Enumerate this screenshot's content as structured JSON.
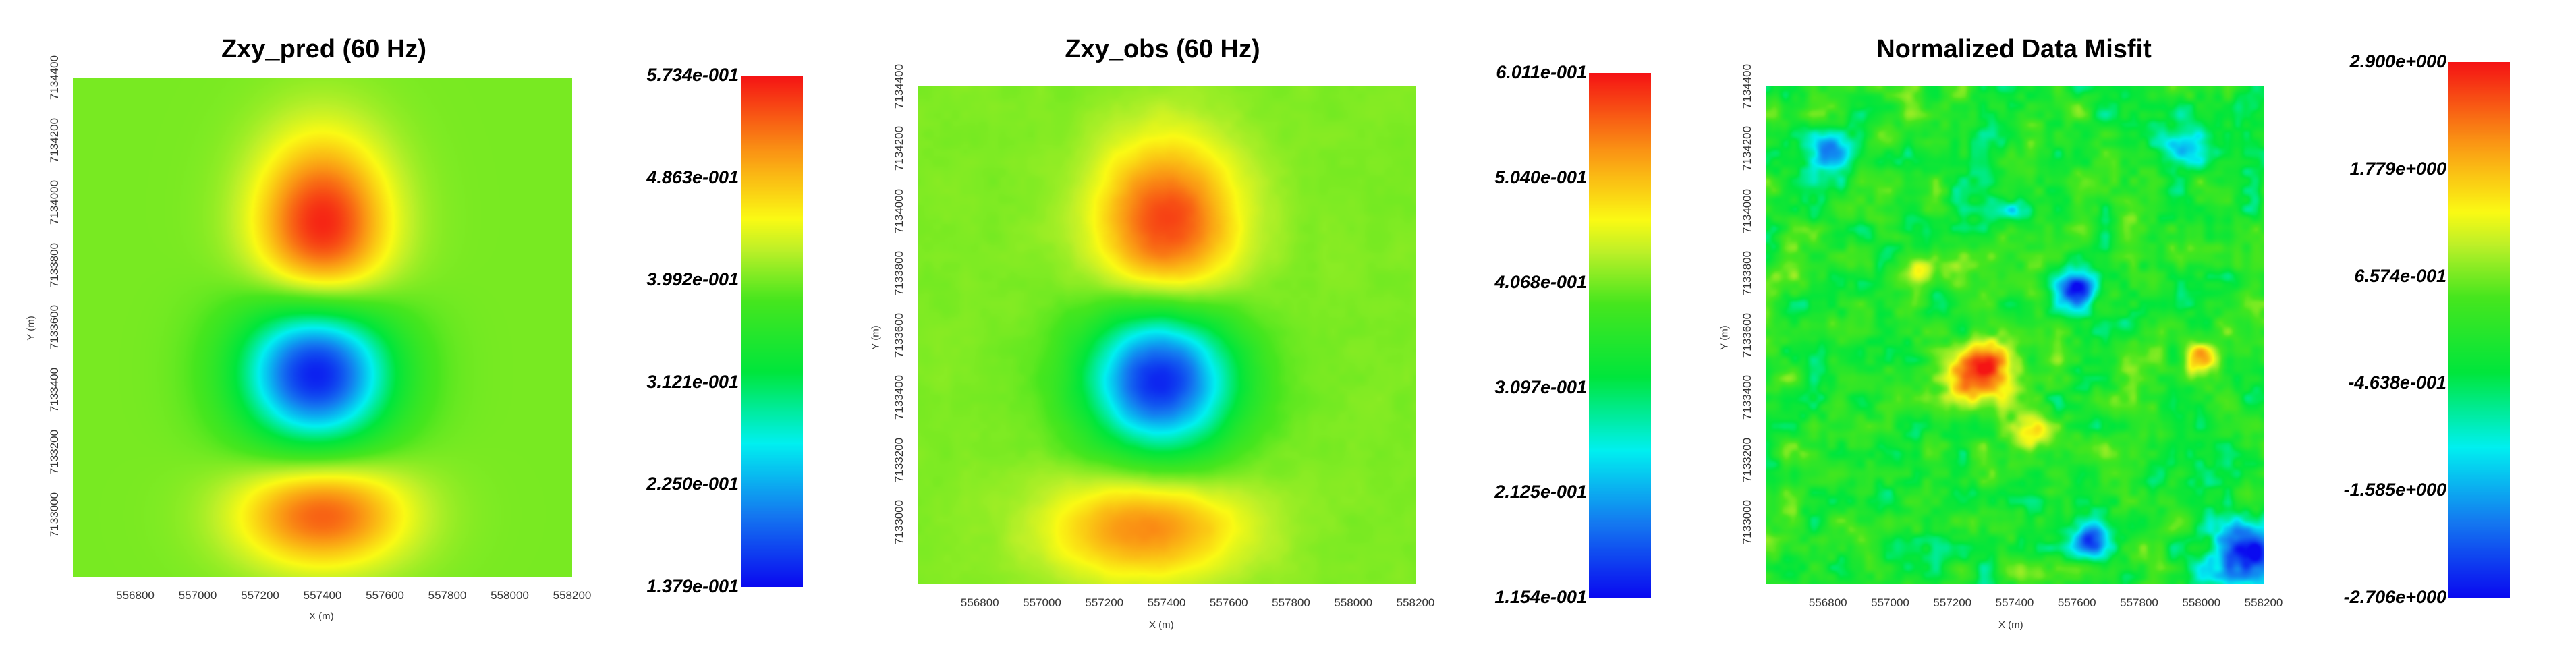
{
  "chart_data": [
    {
      "type": "heatmap",
      "title": "Zxy_pred (60 Hz)",
      "xlabel": "X (m)",
      "ylabel": "Y (m)",
      "xlim": [
        556600,
        558200
      ],
      "ylim": [
        7132800,
        7134400
      ],
      "x_ticks": [
        "556800",
        "557000",
        "557200",
        "557400",
        "557600",
        "557800",
        "558000",
        "558200"
      ],
      "y_ticks": [
        "7133000",
        "7133200",
        "7133400",
        "7133600",
        "7133800",
        "7134000",
        "7134200",
        "7134400"
      ],
      "colorbar": {
        "min": 0.1379,
        "max": 0.5734,
        "ticks": [
          "5.734e-001",
          "4.863e-001",
          "3.992e-001",
          "3.121e-001",
          "2.250e-001",
          "1.379e-001"
        ]
      },
      "features": [
        {
          "x": 557400,
          "y": 7133920,
          "value": 0.57,
          "sx": 150,
          "sy": 200
        },
        {
          "x": 557380,
          "y": 7133460,
          "value": 0.14,
          "sx": 170,
          "sy": 170
        },
        {
          "x": 557400,
          "y": 7133000,
          "value": 0.54,
          "sx": 190,
          "sy": 120
        }
      ],
      "background": 0.4,
      "noise": 0.0
    },
    {
      "type": "heatmap",
      "title": "Zxy_obs (60 Hz)",
      "xlabel": "X (m)",
      "ylabel": "Y (m)",
      "xlim": [
        556600,
        558200
      ],
      "ylim": [
        7132800,
        7134400
      ],
      "x_ticks": [
        "556800",
        "557000",
        "557200",
        "557400",
        "557600",
        "557800",
        "558000",
        "558200"
      ],
      "y_ticks": [
        "7133000",
        "7133200",
        "7133400",
        "7133600",
        "7133800",
        "7134000",
        "7134200",
        "7134400"
      ],
      "colorbar": {
        "min": 0.1154,
        "max": 0.6011,
        "ticks": [
          "6.011e-001",
          "5.040e-001",
          "4.068e-001",
          "3.097e-001",
          "2.125e-001",
          "1.154e-001"
        ]
      },
      "features": [
        {
          "x": 557400,
          "y": 7133960,
          "value": 0.58,
          "sx": 160,
          "sy": 190
        },
        {
          "x": 557380,
          "y": 7133460,
          "value": 0.13,
          "sx": 170,
          "sy": 170
        },
        {
          "x": 557330,
          "y": 7132980,
          "value": 0.54,
          "sx": 220,
          "sy": 120
        }
      ],
      "background": 0.41,
      "noise": 0.06
    },
    {
      "type": "heatmap",
      "title": "Normalized Data Misfit",
      "xlabel": "X (m)",
      "ylabel": "Y (m)",
      "xlim": [
        556600,
        558200
      ],
      "ylim": [
        7132800,
        7134400
      ],
      "x_ticks": [
        "556800",
        "557000",
        "557200",
        "557400",
        "557600",
        "557800",
        "558000",
        "558200"
      ],
      "y_ticks": [
        "7133000",
        "7133200",
        "7133400",
        "7133600",
        "7133800",
        "7134000",
        "7134200",
        "7134400"
      ],
      "colorbar": {
        "min": -2.706,
        "max": 2.9,
        "ticks": [
          "2.900e+000",
          "1.779e+000",
          "6.574e-001",
          "-4.638e-001",
          "-1.585e+000",
          "-2.706e+000"
        ]
      },
      "features": [
        {
          "x": 557300,
          "y": 7133480,
          "value": 2.9,
          "sx": 80,
          "sy": 70
        },
        {
          "x": 558000,
          "y": 7133530,
          "value": 2.5,
          "sx": 40,
          "sy": 40
        },
        {
          "x": 557100,
          "y": 7133800,
          "value": 1.5,
          "sx": 50,
          "sy": 40
        },
        {
          "x": 557450,
          "y": 7133270,
          "value": 1.5,
          "sx": 60,
          "sy": 50
        },
        {
          "x": 557400,
          "y": 7134000,
          "value": -1.8,
          "sx": 50,
          "sy": 30
        },
        {
          "x": 557600,
          "y": 7133750,
          "value": -2.2,
          "sx": 40,
          "sy": 40
        },
        {
          "x": 557650,
          "y": 7132950,
          "value": -2.4,
          "sx": 50,
          "sy": 50
        },
        {
          "x": 558150,
          "y": 7132880,
          "value": -2.6,
          "sx": 80,
          "sy": 80
        },
        {
          "x": 556800,
          "y": 7134200,
          "value": -1.5,
          "sx": 60,
          "sy": 50
        },
        {
          "x": 557950,
          "y": 7134220,
          "value": -1.6,
          "sx": 60,
          "sy": 40
        }
      ],
      "background": 0.0,
      "noise": 0.9
    }
  ]
}
